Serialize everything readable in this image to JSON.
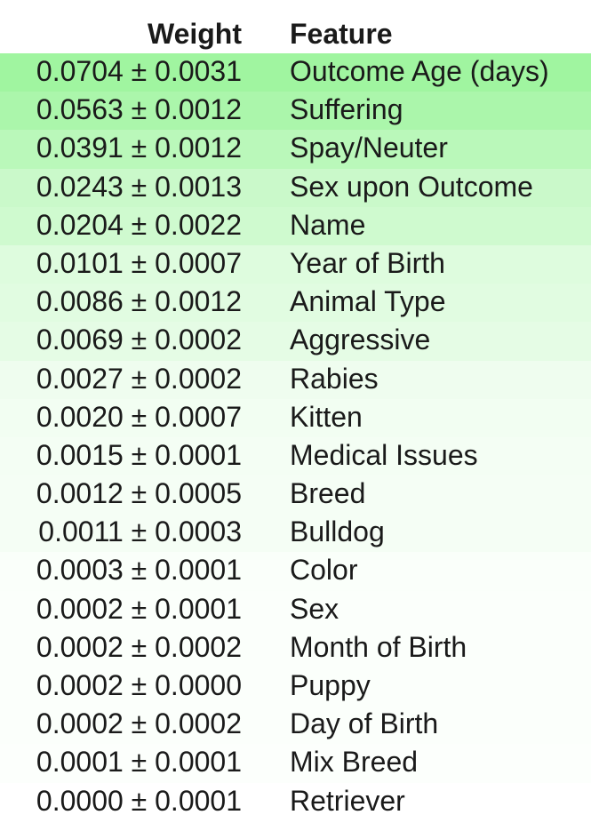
{
  "chart_data": {
    "type": "table",
    "columns": [
      "Weight",
      "Feature"
    ],
    "rows": [
      {
        "weight": 0.0704,
        "error": 0.0031,
        "weight_text": "0.0704 ± 0.0031",
        "feature": "Outcome Age (days)"
      },
      {
        "weight": 0.0563,
        "error": 0.0012,
        "weight_text": "0.0563 ± 0.0012",
        "feature": "Suffering"
      },
      {
        "weight": 0.0391,
        "error": 0.0012,
        "weight_text": "0.0391 ± 0.0012",
        "feature": "Spay/Neuter"
      },
      {
        "weight": 0.0243,
        "error": 0.0013,
        "weight_text": "0.0243 ± 0.0013",
        "feature": "Sex upon Outcome"
      },
      {
        "weight": 0.0204,
        "error": 0.0022,
        "weight_text": "0.0204 ± 0.0022",
        "feature": "Name"
      },
      {
        "weight": 0.0101,
        "error": 0.0007,
        "weight_text": "0.0101 ± 0.0007",
        "feature": "Year of Birth"
      },
      {
        "weight": 0.0086,
        "error": 0.0012,
        "weight_text": "0.0086 ± 0.0012",
        "feature": "Animal Type"
      },
      {
        "weight": 0.0069,
        "error": 0.0002,
        "weight_text": "0.0069 ± 0.0002",
        "feature": "Aggressive"
      },
      {
        "weight": 0.0027,
        "error": 0.0002,
        "weight_text": "0.0027 ± 0.0002",
        "feature": "Rabies"
      },
      {
        "weight": 0.002,
        "error": 0.0007,
        "weight_text": "0.0020 ± 0.0007",
        "feature": "Kitten"
      },
      {
        "weight": 0.0015,
        "error": 0.0001,
        "weight_text": "0.0015 ± 0.0001",
        "feature": "Medical Issues"
      },
      {
        "weight": 0.0012,
        "error": 0.0005,
        "weight_text": "0.0012 ± 0.0005",
        "feature": "Breed"
      },
      {
        "weight": 0.0011,
        "error": 0.0003,
        "weight_text": "0.0011 ± 0.0003",
        "feature": "Bulldog"
      },
      {
        "weight": 0.0003,
        "error": 0.0001,
        "weight_text": "0.0003 ± 0.0001",
        "feature": "Color"
      },
      {
        "weight": 0.0002,
        "error": 0.0001,
        "weight_text": "0.0002 ± 0.0001",
        "feature": "Sex"
      },
      {
        "weight": 0.0002,
        "error": 0.0002,
        "weight_text": "0.0002 ± 0.0002",
        "feature": "Month of Birth"
      },
      {
        "weight": 0.0002,
        "error": 0.0,
        "weight_text": "0.0002 ± 0.0000",
        "feature": "Puppy"
      },
      {
        "weight": 0.0002,
        "error": 0.0002,
        "weight_text": "0.0002 ± 0.0002",
        "feature": "Day of Birth"
      },
      {
        "weight": 0.0001,
        "error": 0.0001,
        "weight_text": "0.0001 ± 0.0001",
        "feature": "Mix Breed"
      },
      {
        "weight": 0.0,
        "error": 0.0001,
        "weight_text": "0.0000 ± 0.0001",
        "feature": "Retriever"
      }
    ],
    "highlight_color": "#a0f5a0",
    "background_color": "#ffffff"
  }
}
